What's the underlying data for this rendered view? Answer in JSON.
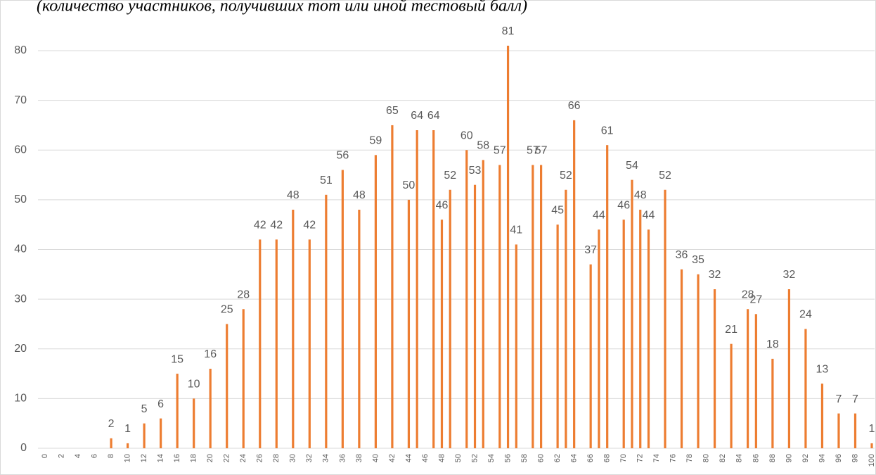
{
  "chart_data": {
    "type": "bar",
    "title": "(количество участников, получивших тот или иной тестовый балл)",
    "x": [
      8,
      10,
      12,
      14,
      16,
      18,
      20,
      22,
      24,
      26,
      28,
      30,
      32,
      34,
      36,
      38,
      40,
      42,
      44,
      45,
      47,
      48,
      49,
      51,
      52,
      53,
      55,
      56,
      57,
      59,
      60,
      62,
      63,
      64,
      66,
      67,
      68,
      70,
      71,
      72,
      73,
      75,
      77,
      79,
      81,
      83,
      85,
      86,
      88,
      90,
      92,
      94,
      96,
      98,
      100
    ],
    "values": [
      2,
      1,
      5,
      6,
      15,
      10,
      16,
      25,
      28,
      42,
      42,
      48,
      42,
      51,
      56,
      48,
      59,
      65,
      50,
      64,
      64,
      46,
      52,
      60,
      53,
      58,
      57,
      81,
      41,
      57,
      57,
      45,
      52,
      66,
      37,
      44,
      61,
      46,
      54,
      48,
      44,
      52,
      36,
      35,
      32,
      21,
      28,
      27,
      18,
      32,
      24,
      13,
      7,
      7,
      1
    ],
    "color": "#ed7d31",
    "xlim": [
      0,
      100
    ],
    "xticks": [
      0,
      2,
      4,
      6,
      8,
      10,
      12,
      14,
      16,
      18,
      20,
      22,
      24,
      26,
      28,
      30,
      32,
      34,
      36,
      38,
      40,
      42,
      44,
      46,
      48,
      50,
      52,
      54,
      56,
      58,
      60,
      62,
      64,
      66,
      68,
      70,
      72,
      74,
      76,
      78,
      80,
      82,
      84,
      86,
      88,
      90,
      92,
      94,
      96,
      98,
      100
    ],
    "ylim": [
      0,
      88
    ],
    "yticks": [
      0,
      10,
      20,
      30,
      40,
      50,
      60,
      70,
      80
    ],
    "grid": true,
    "data_labels": true
  }
}
